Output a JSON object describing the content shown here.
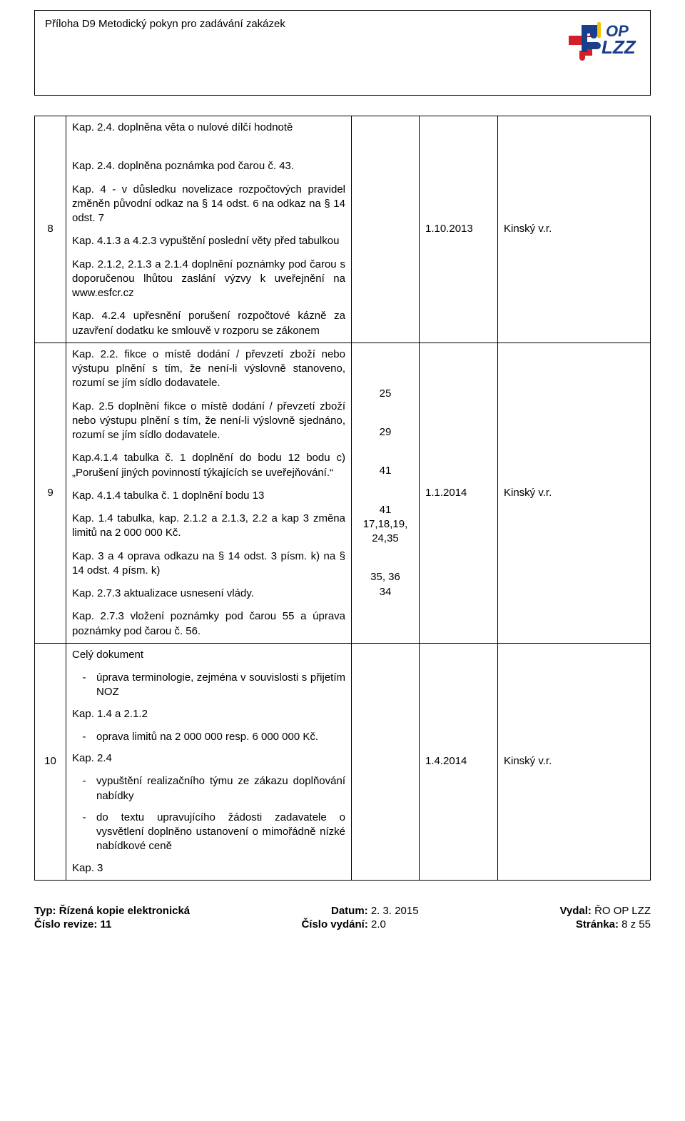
{
  "header": {
    "title": "Příloha D9 Metodický pokyn pro zadávání zakázek"
  },
  "rows": [
    {
      "num": "8",
      "date": "1.10.2013",
      "author": "Kinský v.r.",
      "pages_html": "",
      "desc": [
        {
          "t": "p",
          "text": "Kap. 2.4. doplněna věta o nulové dílčí hodnotě"
        },
        {
          "t": "gap"
        },
        {
          "t": "p",
          "text": "Kap. 2.4. doplněna poznámka pod čarou č. 43."
        },
        {
          "t": "p",
          "text": "Kap. 4 - v důsledku novelizace rozpočtových pravidel změněn původní odkaz na § 14 odst. 6 na odkaz na § 14 odst. 7"
        },
        {
          "t": "p",
          "text": "Kap. 4.1.3 a 4.2.3 vypuštění poslední věty před tabulkou"
        },
        {
          "t": "p",
          "text": "Kap. 2.1.2, 2.1.3 a 2.1.4 doplnění poznámky pod čarou s doporučenou lhůtou zaslání výzvy k uveřejnění na www.esfcr.cz"
        },
        {
          "t": "p",
          "text": "Kap. 4.2.4 upřesnění porušení rozpočtové kázně za uzavření dodatku ke smlouvě v rozporu se zákonem"
        }
      ]
    },
    {
      "num": "9",
      "date": "1.1.2014",
      "author": "Kinský v.r.",
      "pages": [
        "25",
        "29",
        "41",
        "41\n17,18,19,\n24,35",
        "35, 36\n34"
      ],
      "desc": [
        {
          "t": "p",
          "text": "Kap. 2.2. fikce o místě dodání / převzetí zboží nebo výstupu plnění s tím, že není-li výslovně stanoveno, rozumí se jím sídlo dodavatele."
        },
        {
          "t": "p",
          "text": "Kap. 2.5 doplnění fikce o  místě dodání / převzetí zboží nebo výstupu plnění s tím, že není-li výslovně sjednáno, rozumí se jím sídlo dodavatele."
        },
        {
          "t": "p",
          "text": "Kap.4.1.4 tabulka č. 1 doplnění do bodu 12 bodu c) „Porušení jiných povinností týkajících se uveřejňování.“"
        },
        {
          "t": "p",
          "text": "Kap. 4.1.4 tabulka č. 1 doplnění bodu 13"
        },
        {
          "t": "p",
          "text": "Kap. 1.4 tabulka, kap. 2.1.2 a 2.1.3, 2.2 a kap 3 změna limitů na 2 000 000 Kč."
        },
        {
          "t": "p",
          "text": "Kap. 3 a 4  oprava odkazu na § 14 odst. 3 písm. k) na § 14 odst. 4 písm. k)"
        },
        {
          "t": "p",
          "text": "Kap. 2.7.3 aktualizace usnesení vlády."
        },
        {
          "t": "p",
          "text": "Kap. 2.7.3 vložení poznámky pod čarou 55 a úprava poznámky pod čarou č. 56."
        }
      ]
    },
    {
      "num": "10",
      "date": "1.4.2014",
      "author": "Kinský v.r.",
      "pages_html": "",
      "desc": [
        {
          "t": "p",
          "text": "Celý dokument"
        },
        {
          "t": "b",
          "text": "úprava terminologie, zejména v souvislosti s přijetím NOZ"
        },
        {
          "t": "p",
          "text": "Kap. 1.4 a 2.1.2"
        },
        {
          "t": "b",
          "text": "oprava limitů na 2 000 000 resp. 6 000 000 Kč."
        },
        {
          "t": "p",
          "text": "Kap. 2.4"
        },
        {
          "t": "b",
          "text": "vypuštění realizačního týmu ze zákazu doplňování nabídky"
        },
        {
          "t": "b",
          "text": "do textu upravujícího žádosti zadavatele o vysvětlení doplněno ustanovení o mimořádně nízké nabídkové ceně"
        },
        {
          "t": "p",
          "text": "Kap. 3"
        }
      ]
    }
  ],
  "footer": {
    "l1_left_label": "Typ:",
    "l1_left_value": " Řízená kopie elektronická",
    "l1_mid_label": "Datum:",
    "l1_mid_value": " 2. 3. 2015",
    "l1_right_label": "Vydal:",
    "l1_right_value": " ŘO OP LZZ",
    "l2_left_label": "Číslo revize:",
    "l2_left_value": " 11",
    "l2_mid_label": "Číslo vydání:",
    "l2_mid_value": " 2.0",
    "l2_right_label": "Stránka:",
    "l2_right_value": "  8 z 55"
  },
  "logo": {
    "red": "#d32027",
    "blue": "#1a3e8c",
    "yellow": "#f5c400",
    "text1": "OP",
    "text2": "LZZ"
  }
}
